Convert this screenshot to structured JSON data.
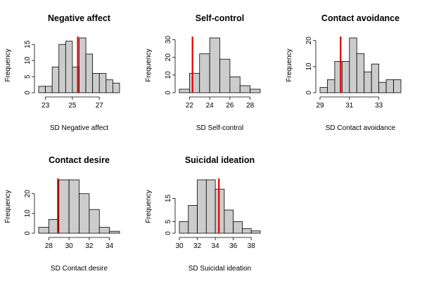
{
  "chart_data": [
    {
      "type": "bar",
      "title": "Negative affect",
      "xlabel": "SD Negative affect",
      "ylabel": "Frequency",
      "bin_edges": [
        22.5,
        23.0,
        23.5,
        24.0,
        24.5,
        25.0,
        25.5,
        26.0,
        26.5,
        27.0,
        27.5,
        28.0,
        28.5
      ],
      "values": [
        2,
        2,
        8,
        15,
        16,
        8,
        17,
        12,
        6,
        6,
        4,
        3
      ],
      "vline": 25.4,
      "vline_color": "#e00000",
      "bar_color": "#cccccc",
      "xticks": [
        23,
        25,
        27
      ],
      "yticks": [
        0,
        5,
        10,
        15
      ],
      "xlim": [
        22.5,
        28.5
      ],
      "ylim": [
        0,
        17
      ]
    },
    {
      "type": "bar",
      "title": "Self-control",
      "xlabel": "SD Self-control",
      "ylabel": "Frequency",
      "bin_edges": [
        21,
        22,
        23,
        24,
        25,
        26,
        27,
        28,
        29
      ],
      "values": [
        2,
        11,
        22,
        31,
        19,
        9,
        4,
        2
      ],
      "vline": 22.3,
      "vline_color": "#e00000",
      "bar_color": "#cccccc",
      "xticks": [
        22,
        24,
        26,
        28
      ],
      "yticks": [
        0,
        10,
        20,
        30
      ],
      "xlim": [
        21,
        29
      ],
      "ylim": [
        0,
        31
      ]
    },
    {
      "type": "bar",
      "title": "Contact avoidance",
      "xlabel": "SD Contact avoidance",
      "ylabel": "Frequency",
      "bin_edges": [
        29.0,
        29.5,
        30.0,
        30.5,
        31.0,
        31.5,
        32.0,
        32.5,
        33.0,
        33.5,
        34.0,
        34.5
      ],
      "values": [
        2,
        5,
        12,
        12,
        21,
        15,
        8,
        11,
        4,
        5,
        5
      ],
      "vline": 30.4,
      "vline_color": "#e00000",
      "bar_color": "#cccccc",
      "xticks": [
        29,
        31,
        33
      ],
      "yticks": [
        0,
        10,
        20
      ],
      "xlim": [
        29,
        34.5
      ],
      "ylim": [
        0,
        21
      ]
    },
    {
      "type": "bar",
      "title": "Contact desire",
      "xlabel": "SD Contact desire",
      "ylabel": "Frequency",
      "bin_edges": [
        27,
        28,
        29,
        30,
        31,
        32,
        33,
        34,
        35
      ],
      "values": [
        3,
        7,
        27,
        27,
        20,
        12,
        3,
        1
      ],
      "vline": 28.9,
      "vline_color": "#e00000",
      "bar_color": "#cccccc",
      "xticks": [
        28,
        30,
        32,
        34
      ],
      "yticks": [
        0,
        10,
        20
      ],
      "xlim": [
        27,
        35
      ],
      "ylim": [
        0,
        27
      ]
    },
    {
      "type": "bar",
      "title": "Suicidal ideation",
      "xlabel": "SD Suicidal ideation",
      "ylabel": "Frequency",
      "bin_edges": [
        30,
        31,
        32,
        33,
        34,
        35,
        36,
        37,
        38,
        39
      ],
      "values": [
        5,
        12,
        23,
        23,
        19,
        10,
        5,
        2,
        1
      ],
      "vline": 34.4,
      "vline_color": "#e00000",
      "bar_color": "#cccccc",
      "xticks": [
        30,
        32,
        34,
        36,
        38
      ],
      "yticks": [
        0,
        5,
        15
      ],
      "xlim": [
        30,
        39
      ],
      "ylim": [
        0,
        23
      ]
    }
  ]
}
